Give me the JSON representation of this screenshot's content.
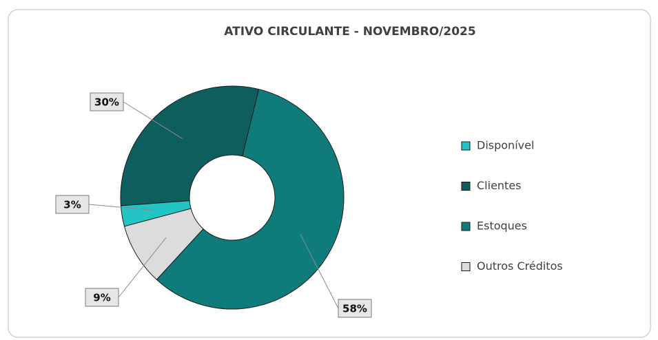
{
  "chart_data": {
    "type": "donut",
    "title": "ATIVO CIRCULANTE  - NOVEMBRO/2025",
    "categories": [
      "Disponível",
      "Clientes",
      "Estoques",
      "Outros Créditos"
    ],
    "values": [
      3,
      30,
      58,
      9
    ],
    "value_labels": [
      "3%",
      "30%",
      "58%",
      "9%"
    ],
    "colors": [
      "#22c4c4",
      "#0f5e5e",
      "#0f7b7b",
      "#dcdcdc"
    ],
    "legend": "right"
  }
}
